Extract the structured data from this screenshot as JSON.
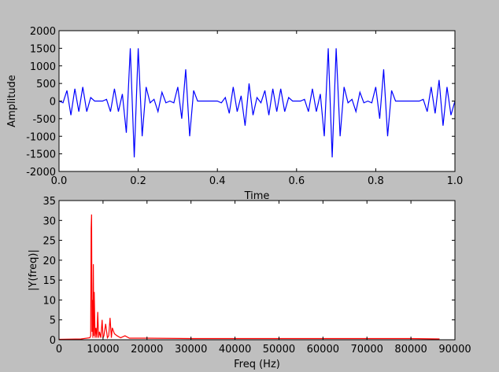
{
  "chart_data": [
    {
      "type": "line",
      "ylabel": "Amplitude",
      "xlabel": "Time",
      "color": "#0000ff",
      "x": [
        0.0,
        0.01,
        0.02,
        0.03,
        0.04,
        0.05,
        0.06,
        0.07,
        0.08,
        0.09,
        0.1,
        0.11,
        0.12,
        0.13,
        0.14,
        0.15,
        0.16,
        0.17,
        0.18,
        0.19,
        0.2,
        0.21,
        0.22,
        0.23,
        0.24,
        0.25,
        0.26,
        0.27,
        0.28,
        0.29,
        0.3,
        0.31,
        0.32,
        0.33,
        0.34,
        0.35,
        0.36,
        0.37,
        0.38,
        0.39,
        0.4,
        0.41,
        0.42,
        0.43,
        0.44,
        0.45,
        0.46,
        0.47,
        0.48,
        0.49,
        0.5,
        0.51,
        0.52,
        0.53,
        0.54,
        0.55,
        0.56,
        0.57,
        0.58,
        0.59,
        0.6,
        0.61,
        0.62,
        0.63,
        0.64,
        0.65,
        0.66,
        0.67,
        0.68,
        0.69,
        0.7,
        0.71,
        0.72,
        0.73,
        0.74,
        0.75,
        0.76,
        0.77,
        0.78,
        0.79,
        0.8,
        0.81,
        0.82,
        0.83,
        0.84,
        0.85,
        0.86,
        0.87,
        0.88,
        0.89,
        0.9,
        0.91,
        0.92,
        0.93,
        0.94,
        0.95,
        0.96,
        0.97,
        0.98,
        0.99,
        1.0
      ],
      "values": [
        0,
        -50,
        300,
        -400,
        350,
        -300,
        400,
        -300,
        100,
        0,
        0,
        0,
        50,
        -300,
        350,
        -300,
        200,
        -900,
        1500,
        -1600,
        1500,
        -1000,
        400,
        -50,
        50,
        -300,
        250,
        -50,
        0,
        -50,
        400,
        -500,
        900,
        -1000,
        300,
        0,
        0,
        0,
        0,
        0,
        0,
        -50,
        100,
        -350,
        400,
        -300,
        150,
        -700,
        500,
        -400,
        100,
        -50,
        300,
        -400,
        350,
        -300,
        350,
        -300,
        100,
        0,
        0,
        0,
        50,
        -300,
        350,
        -300,
        200,
        -1000,
        1500,
        -1600,
        1500,
        -1000,
        400,
        -50,
        50,
        -300,
        250,
        -50,
        0,
        -50,
        400,
        -500,
        900,
        -1000,
        300,
        0,
        0,
        0,
        0,
        0,
        0,
        0,
        50,
        -300,
        400,
        -350,
        600,
        -700,
        400,
        -400,
        0
      ],
      "xlim": [
        0,
        1
      ],
      "ylim": [
        -2000,
        2000
      ],
      "xticks": [
        {
          "value": 0,
          "label": "0.0"
        },
        0.2,
        0.4,
        0.6,
        0.8,
        {
          "value": 1,
          "label": "1.0"
        }
      ],
      "yticks": [
        -2000,
        -1500,
        -1000,
        -500,
        0,
        500,
        1000,
        1500,
        2000
      ]
    },
    {
      "type": "line",
      "ylabel": "|Y(freq)|",
      "xlabel": "Freq (Hz)",
      "color": "#ff0000",
      "x": [
        0,
        5000,
        7000,
        7200,
        7300,
        7400,
        7500,
        7600,
        7700,
        7800,
        7900,
        8000,
        8200,
        8400,
        8600,
        8800,
        9000,
        9200,
        9500,
        9800,
        10000,
        10200,
        10600,
        11000,
        11300,
        11600,
        11900,
        12100,
        12600,
        13200,
        14000,
        15000,
        16000,
        20000,
        30000,
        40000,
        50000,
        60000,
        70000,
        80000,
        86500
      ],
      "values": [
        0.1,
        0.2,
        0.5,
        1,
        28,
        31.5,
        2,
        10,
        0.5,
        19,
        1,
        12,
        0.5,
        3,
        0.5,
        7,
        0.5,
        2,
        0.5,
        5,
        0.5,
        1,
        4,
        0.5,
        1,
        5.5,
        0.5,
        3,
        1.5,
        1,
        0.5,
        1,
        0.4,
        0.4,
        0.3,
        0.3,
        0.3,
        0.3,
        0.3,
        0.3,
        0.2
      ],
      "xlim": [
        0,
        90000
      ],
      "ylim": [
        0,
        35
      ],
      "xticks": [
        0,
        10000,
        20000,
        30000,
        40000,
        50000,
        60000,
        70000,
        80000,
        90000
      ],
      "yticks": [
        0,
        5,
        10,
        15,
        20,
        25,
        30,
        35
      ]
    }
  ]
}
